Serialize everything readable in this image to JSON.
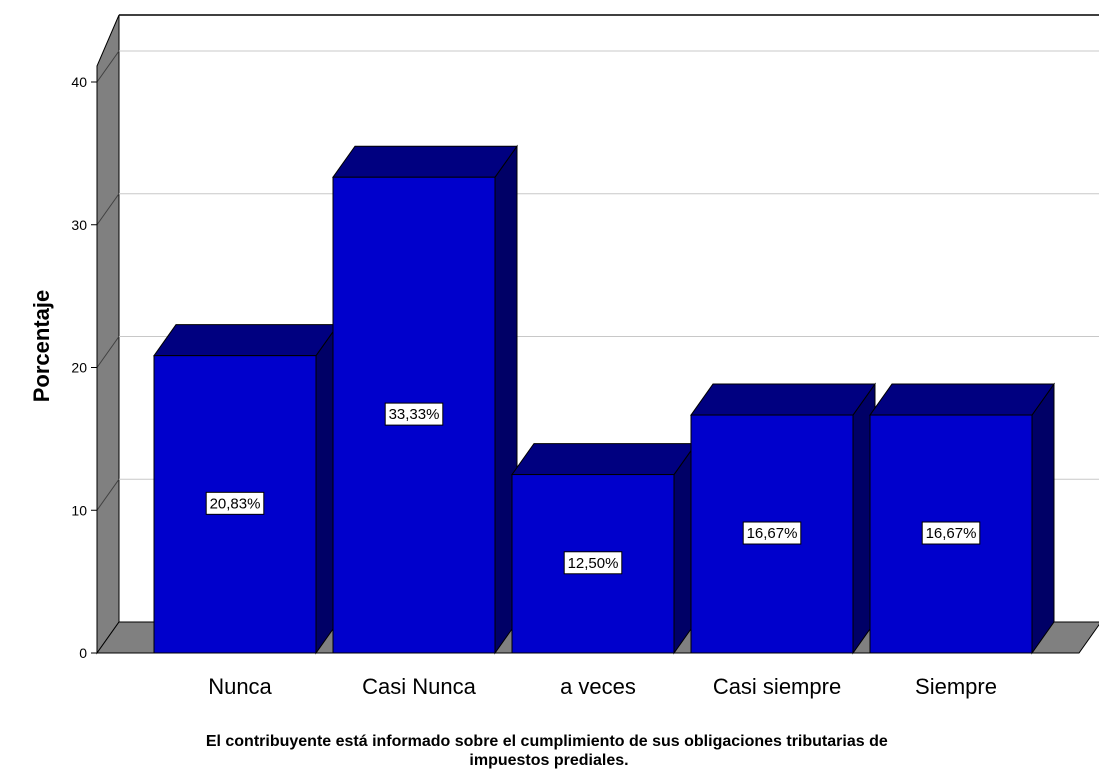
{
  "chart_data": {
    "type": "bar",
    "style": "3d",
    "categories": [
      "Nunca",
      "Casi Nunca",
      "a veces",
      "Casi siempre",
      "Siempre"
    ],
    "values": [
      20.83,
      33.33,
      12.5,
      16.67,
      16.67
    ],
    "data_labels": [
      "20,83%",
      "33,33%",
      "12,50%",
      "16,67%",
      "16,67%"
    ],
    "ylabel": "Porcentaje",
    "xlabel": [
      "El contribuyente está informado sobre el cumplimiento de sus obligaciones tributarias de",
      "impuestos prediales."
    ],
    "ylim": [
      0,
      40
    ],
    "yticks": [
      0,
      10,
      20,
      30,
      40
    ],
    "grid": true,
    "legend": "none",
    "colors": {
      "bar_front": "#0000CC",
      "bar_top": "#000080",
      "bar_side": "#000066",
      "wall": "#808080",
      "gridline": "#C8C8C8"
    }
  }
}
